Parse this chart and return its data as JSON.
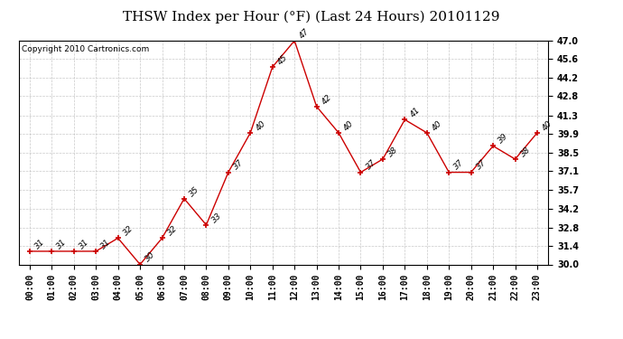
{
  "title": "THSW Index per Hour (°F) (Last 24 Hours) 20101129",
  "copyright": "Copyright 2010 Cartronics.com",
  "hours": [
    "00:00",
    "01:00",
    "02:00",
    "03:00",
    "04:00",
    "05:00",
    "06:00",
    "07:00",
    "08:00",
    "09:00",
    "10:00",
    "11:00",
    "12:00",
    "13:00",
    "14:00",
    "15:00",
    "16:00",
    "17:00",
    "18:00",
    "19:00",
    "20:00",
    "21:00",
    "22:00",
    "23:00"
  ],
  "y_data": [
    31,
    31,
    31,
    31,
    32,
    30,
    32,
    35,
    33,
    37,
    40,
    45,
    47,
    42,
    40,
    37,
    38,
    41,
    40,
    37,
    37,
    39,
    38,
    40
  ],
  "line_color": "#cc0000",
  "marker_color": "#cc0000",
  "bg_color": "#ffffff",
  "grid_color": "#bbbbbb",
  "ylim_min": 30.0,
  "ylim_max": 47.0,
  "yticks": [
    30.0,
    31.4,
    32.8,
    34.2,
    35.7,
    37.1,
    38.5,
    39.9,
    41.3,
    42.8,
    44.2,
    45.6,
    47.0
  ],
  "ytick_labels": [
    "30.0",
    "31.4",
    "32.8",
    "34.2",
    "35.7",
    "37.1",
    "38.5",
    "39.9",
    "41.3",
    "42.8",
    "44.2",
    "45.6",
    "47.0"
  ],
  "title_fontsize": 11,
  "copyright_fontsize": 6.5,
  "label_fontsize": 6.5,
  "tick_fontsize": 7
}
